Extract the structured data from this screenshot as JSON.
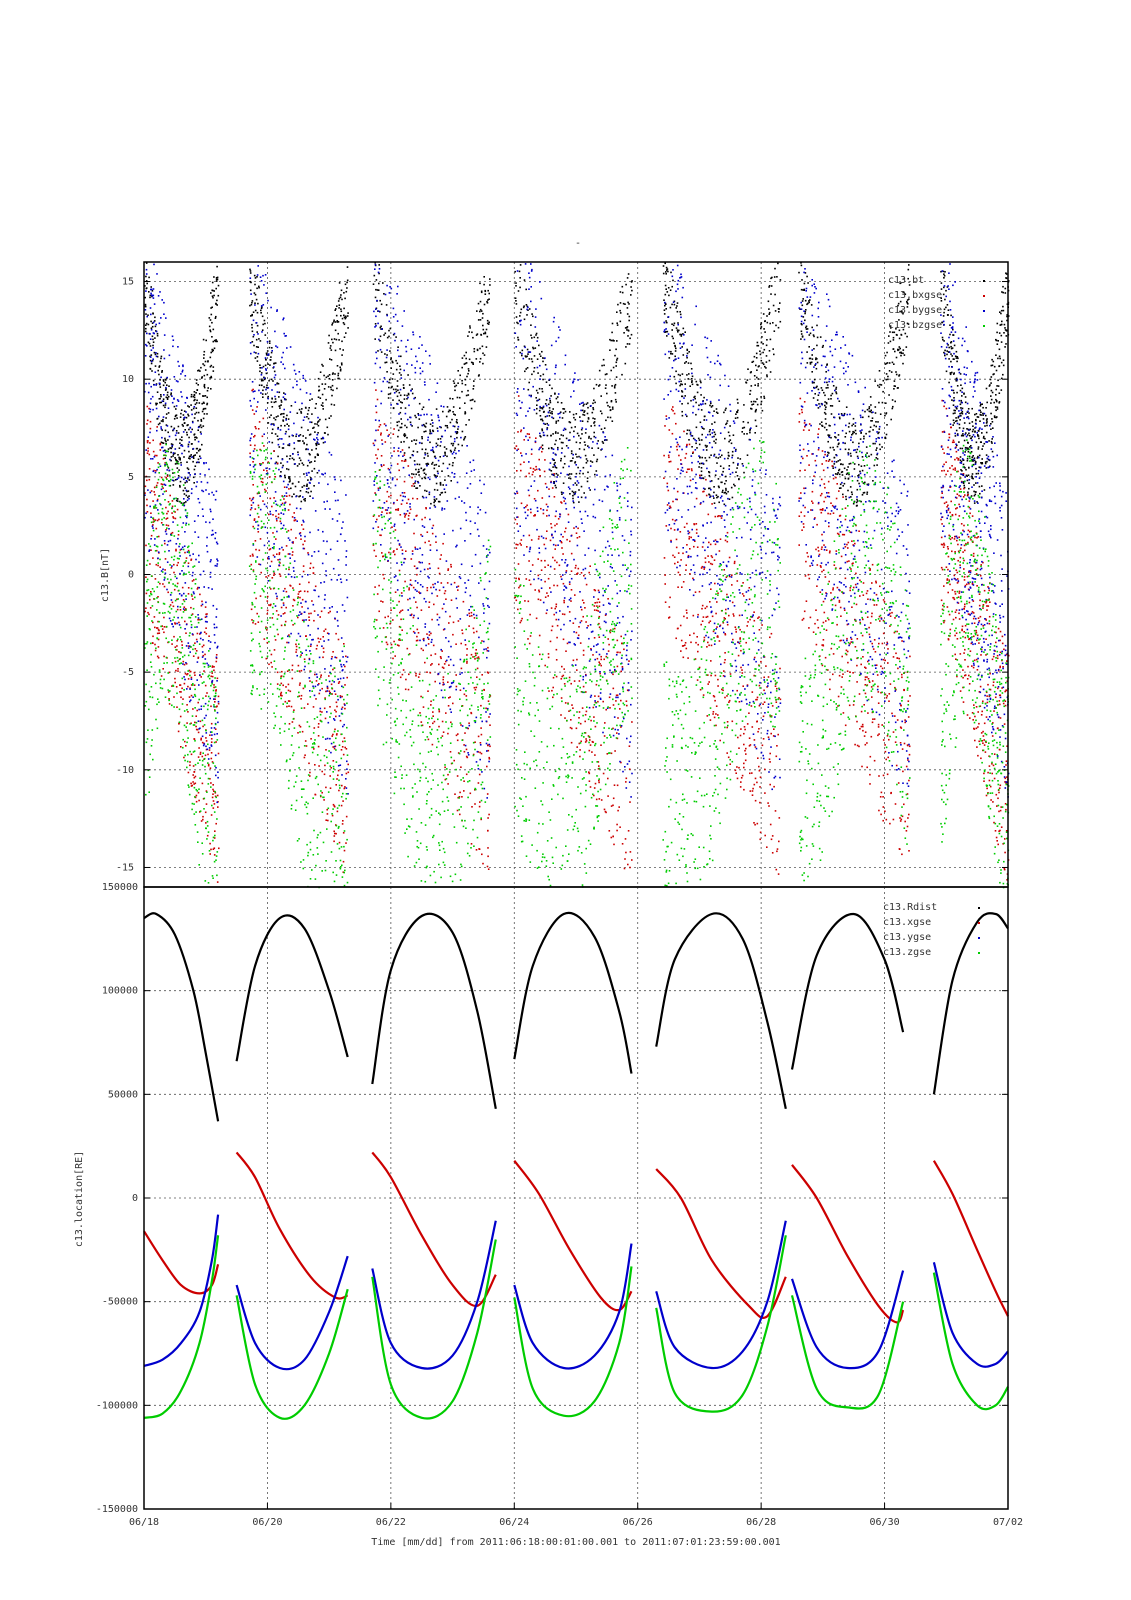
{
  "title": "-",
  "colors": {
    "black": "#000000",
    "red": "#cc0000",
    "blue": "#0000cc",
    "green": "#00cc00"
  },
  "chart_data": [
    {
      "type": "scatter",
      "ylabel": "c13.B[nT]",
      "ylim": [
        -16,
        16
      ],
      "yticks": [
        -15,
        -10,
        -5,
        0,
        5,
        10,
        15
      ],
      "xlim": [
        0,
        14
      ],
      "grid": true,
      "legend_position": "top-right",
      "series": [
        {
          "name": "c13.bt",
          "color": "#000000"
        },
        {
          "name": "c13.bxgse",
          "color": "#cc0000"
        },
        {
          "name": "c13.bygse",
          "color": "#0000cc"
        },
        {
          "name": "c13.bzgse",
          "color": "#00cc00"
        }
      ],
      "segments": [
        {
          "start": 0.0,
          "end": 1.2
        },
        {
          "start": 1.7,
          "end": 3.3
        },
        {
          "start": 3.7,
          "end": 5.6
        },
        {
          "start": 6.0,
          "end": 7.9
        },
        {
          "start": 8.4,
          "end": 10.3
        },
        {
          "start": 10.6,
          "end": 12.4
        },
        {
          "start": 12.9,
          "end": 14.0
        }
      ]
    },
    {
      "type": "line",
      "ylabel": "c13.location[RE]",
      "ylim": [
        -150000,
        150000
      ],
      "yticks": [
        -150000,
        -100000,
        -50000,
        0,
        50000,
        100000,
        150000
      ],
      "xlim": [
        0,
        14
      ],
      "xticks": [
        {
          "value": 0,
          "label": "06/18"
        },
        {
          "value": 2,
          "label": "06/20"
        },
        {
          "value": 4,
          "label": "06/22"
        },
        {
          "value": 6,
          "label": "06/24"
        },
        {
          "value": 8,
          "label": "06/26"
        },
        {
          "value": 10,
          "label": "06/28"
        },
        {
          "value": 12,
          "label": "06/30"
        },
        {
          "value": 14,
          "label": "07/02"
        }
      ],
      "xlabel": "Time [mm/dd]  from 2011:06:18:00:01:00.001  to  2011:07:01:23:59:00.001",
      "grid": true,
      "legend_position": "top-right",
      "series": [
        {
          "name": "c13.Rdist",
          "color": "#000000",
          "segments": [
            {
              "x": [
                0.0,
                0.2,
                0.5,
                0.8,
                1.0,
                1.2
              ],
              "y": [
                135000,
                137000,
                127000,
                100000,
                70000,
                37000
              ]
            },
            {
              "x": [
                1.5,
                1.8,
                2.2,
                2.6,
                3.0,
                3.3
              ],
              "y": [
                66000,
                112000,
                135000,
                130000,
                100000,
                68000
              ]
            },
            {
              "x": [
                3.7,
                4.0,
                4.5,
                5.0,
                5.4,
                5.7
              ],
              "y": [
                55000,
                110000,
                136000,
                128000,
                90000,
                43000
              ]
            },
            {
              "x": [
                6.0,
                6.3,
                6.8,
                7.3,
                7.7,
                7.9
              ],
              "y": [
                67000,
                112000,
                137000,
                126000,
                90000,
                60000
              ]
            },
            {
              "x": [
                8.3,
                8.6,
                9.2,
                9.7,
                10.1,
                10.4
              ],
              "y": [
                73000,
                115000,
                137000,
                125000,
                85000,
                43000
              ]
            },
            {
              "x": [
                10.5,
                10.9,
                11.5,
                12.0,
                12.3
              ],
              "y": [
                62000,
                117000,
                137000,
                115000,
                80000
              ]
            },
            {
              "x": [
                12.8,
                13.1,
                13.5,
                13.8,
                14.0
              ],
              "y": [
                50000,
                105000,
                133000,
                137000,
                130000
              ]
            }
          ]
        },
        {
          "name": "c13.xgse",
          "color": "#cc0000",
          "segments": [
            {
              "x": [
                0.0,
                0.3,
                0.6,
                0.9,
                1.1,
                1.2
              ],
              "y": [
                -16000,
                -30000,
                -42000,
                -46000,
                -42000,
                -32000
              ]
            },
            {
              "x": [
                1.5,
                1.8,
                2.2,
                2.7,
                3.1,
                3.3
              ],
              "y": [
                22000,
                10000,
                -15000,
                -38000,
                -48000,
                -47000
              ]
            },
            {
              "x": [
                3.7,
                4.0,
                4.5,
                5.0,
                5.4,
                5.7
              ],
              "y": [
                22000,
                10000,
                -18000,
                -42000,
                -52000,
                -37000
              ]
            },
            {
              "x": [
                6.0,
                6.4,
                6.9,
                7.4,
                7.7,
                7.9
              ],
              "y": [
                18000,
                2000,
                -25000,
                -48000,
                -54000,
                -45000
              ]
            },
            {
              "x": [
                8.3,
                8.7,
                9.2,
                9.8,
                10.1,
                10.4
              ],
              "y": [
                14000,
                0,
                -30000,
                -52000,
                -57000,
                -38000
              ]
            },
            {
              "x": [
                10.5,
                10.9,
                11.4,
                11.9,
                12.2,
                12.3
              ],
              "y": [
                16000,
                0,
                -28000,
                -52000,
                -60000,
                -54000
              ]
            },
            {
              "x": [
                12.8,
                13.1,
                13.5,
                13.8,
                14.0
              ],
              "y": [
                18000,
                2000,
                -25000,
                -45000,
                -57000
              ]
            }
          ]
        },
        {
          "name": "c13.ygse",
          "color": "#0000cc",
          "segments": [
            {
              "x": [
                0.0,
                0.3,
                0.6,
                0.9,
                1.1,
                1.2
              ],
              "y": [
                -81000,
                -78000,
                -70000,
                -55000,
                -30000,
                -8000
              ]
            },
            {
              "x": [
                1.5,
                1.8,
                2.2,
                2.6,
                3.0,
                3.3
              ],
              "y": [
                -42000,
                -70000,
                -82000,
                -78000,
                -55000,
                -28000
              ]
            },
            {
              "x": [
                3.7,
                4.0,
                4.5,
                5.0,
                5.4,
                5.7
              ],
              "y": [
                -34000,
                -70000,
                -82000,
                -76000,
                -50000,
                -11000
              ]
            },
            {
              "x": [
                6.0,
                6.3,
                6.8,
                7.3,
                7.7,
                7.9
              ],
              "y": [
                -42000,
                -70000,
                -82000,
                -76000,
                -55000,
                -22000
              ]
            },
            {
              "x": [
                8.3,
                8.6,
                9.2,
                9.7,
                10.1,
                10.4
              ],
              "y": [
                -45000,
                -72000,
                -82000,
                -74000,
                -50000,
                -11000
              ]
            },
            {
              "x": [
                10.5,
                10.9,
                11.4,
                11.9,
                12.3
              ],
              "y": [
                -39000,
                -72000,
                -82000,
                -74000,
                -35000
              ]
            },
            {
              "x": [
                12.8,
                13.1,
                13.5,
                13.8,
                14.0
              ],
              "y": [
                -31000,
                -65000,
                -80000,
                -80000,
                -74000
              ]
            }
          ]
        },
        {
          "name": "c13.zgse",
          "color": "#00cc00",
          "segments": [
            {
              "x": [
                0.0,
                0.3,
                0.6,
                0.9,
                1.1,
                1.2
              ],
              "y": [
                -106000,
                -104000,
                -93000,
                -70000,
                -40000,
                -18000
              ]
            },
            {
              "x": [
                1.5,
                1.8,
                2.2,
                2.6,
                3.0,
                3.3
              ],
              "y": [
                -47000,
                -90000,
                -106000,
                -100000,
                -75000,
                -44000
              ]
            },
            {
              "x": [
                3.7,
                4.0,
                4.5,
                5.0,
                5.4,
                5.7
              ],
              "y": [
                -38000,
                -90000,
                -106000,
                -98000,
                -65000,
                -20000
              ]
            },
            {
              "x": [
                6.0,
                6.3,
                6.8,
                7.3,
                7.7,
                7.9
              ],
              "y": [
                -48000,
                -92000,
                -105000,
                -98000,
                -70000,
                -33000
              ]
            },
            {
              "x": [
                8.3,
                8.6,
                9.2,
                9.7,
                10.1,
                10.4
              ],
              "y": [
                -53000,
                -94000,
                -103000,
                -95000,
                -62000,
                -18000
              ]
            },
            {
              "x": [
                10.5,
                10.9,
                11.4,
                11.9,
                12.3
              ],
              "y": [
                -47000,
                -92000,
                -101000,
                -95000,
                -50000
              ]
            },
            {
              "x": [
                12.8,
                13.1,
                13.5,
                13.8,
                14.0
              ],
              "y": [
                -36000,
                -80000,
                -100000,
                -100000,
                -91000
              ]
            }
          ]
        }
      ]
    }
  ]
}
